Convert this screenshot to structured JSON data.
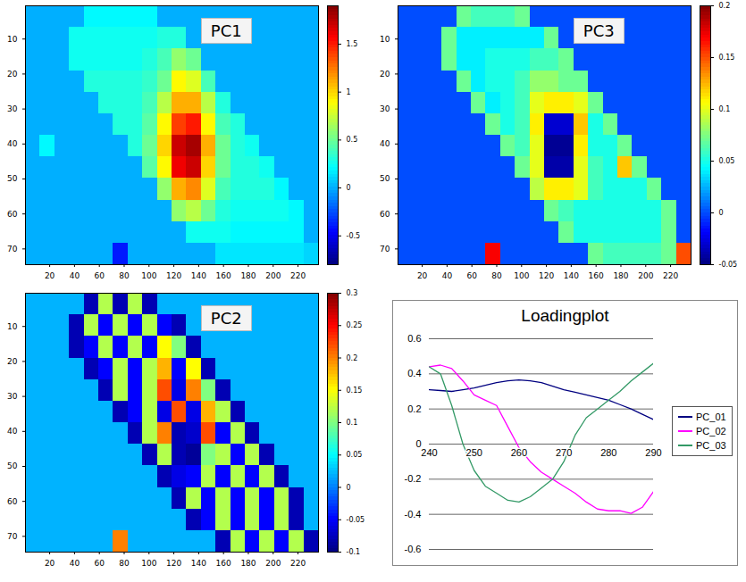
{
  "chart_data": [
    {
      "type": "heatmap",
      "title": "PC1",
      "xlim": [
        0.5,
        236.5
      ],
      "ylim": [
        0.5,
        74.5
      ],
      "xticks": [
        20,
        40,
        60,
        80,
        100,
        120,
        140,
        160,
        180,
        200,
        220
      ],
      "yticks": [
        10,
        20,
        30,
        40,
        50,
        60,
        70
      ],
      "color_range": [
        -0.8,
        1.9
      ],
      "color_ticks": [
        -0.5,
        0,
        0.5,
        1,
        1.5
      ],
      "cells": [
        [
          0,
          0,
          0,
          0,
          0.2,
          0.2,
          0.2,
          0.2,
          0.2,
          0,
          0,
          0,
          0,
          0,
          0,
          0,
          0,
          0,
          0,
          0
        ],
        [
          0,
          0,
          0,
          0.25,
          0.25,
          0.25,
          0.25,
          0.25,
          0.25,
          0.3,
          0.3,
          0,
          0,
          0,
          0,
          0,
          0,
          0,
          0,
          0
        ],
        [
          0,
          0,
          0,
          0.25,
          0.25,
          0.25,
          0.25,
          0.25,
          0.3,
          0.4,
          0.6,
          0.5,
          0,
          0,
          0,
          0,
          0,
          0,
          0,
          0
        ],
        [
          0,
          0,
          0,
          0,
          0.3,
          0.3,
          0.3,
          0.3,
          0.35,
          0.5,
          0.9,
          0.8,
          0.4,
          0,
          0,
          0,
          0,
          0,
          0,
          0
        ],
        [
          0,
          0,
          0,
          0,
          0,
          0.3,
          0.3,
          0.3,
          0.4,
          0.7,
          1.1,
          1.1,
          0.7,
          0.3,
          0,
          0,
          0,
          0,
          0,
          0
        ],
        [
          0,
          0,
          0,
          0,
          0,
          0,
          0.3,
          0.3,
          0.45,
          0.9,
          1.4,
          1.5,
          0.9,
          0.4,
          0.3,
          0,
          0,
          0,
          0,
          0
        ],
        [
          0,
          0.2,
          0,
          0,
          0,
          0,
          0,
          0.3,
          0.5,
          1.0,
          1.7,
          1.8,
          1.1,
          0.5,
          0.3,
          0.25,
          0,
          0,
          0,
          0
        ],
        [
          0,
          0,
          0,
          0,
          0,
          0,
          0,
          0,
          0.45,
          0.9,
          1.6,
          1.7,
          1.0,
          0.5,
          0.3,
          0.3,
          0.25,
          0,
          0,
          0
        ],
        [
          0,
          0,
          0,
          0,
          0,
          0,
          0,
          0,
          0,
          0.6,
          1.1,
          1.2,
          0.8,
          0.4,
          0.3,
          0.3,
          0.3,
          0.2,
          0,
          0
        ],
        [
          0,
          0,
          0,
          0,
          0,
          0,
          0,
          0,
          0,
          0,
          0.6,
          0.7,
          0.5,
          0.3,
          0.25,
          0.25,
          0.25,
          0.25,
          0.2,
          0
        ],
        [
          0,
          0,
          0,
          0,
          0,
          0,
          0,
          0,
          0,
          0,
          0,
          0.25,
          0.25,
          0.25,
          0.2,
          0.2,
          0.2,
          0.2,
          0.2,
          0
        ],
        [
          0,
          0,
          0,
          0,
          0,
          0,
          -0.4,
          0,
          0,
          0,
          0,
          0,
          0,
          0.15,
          0.15,
          0.15,
          0.15,
          0.15,
          0.15,
          0.1
        ]
      ]
    },
    {
      "type": "heatmap",
      "title": "PC3",
      "xlim": [
        0.5,
        236.5
      ],
      "ylim": [
        0.5,
        74.5
      ],
      "xticks": [
        20,
        40,
        60,
        80,
        100,
        120,
        140,
        160,
        180,
        200,
        220
      ],
      "yticks": [
        10,
        20,
        30,
        40,
        50,
        60,
        70
      ],
      "color_range": [
        -0.05,
        0.2
      ],
      "color_ticks": [
        -0.05,
        0,
        0.05,
        0.1,
        0.15,
        0.2
      ],
      "cells": [
        [
          0,
          0,
          0,
          0,
          0.07,
          0.06,
          0.06,
          0.06,
          0.07,
          0,
          0,
          0,
          0,
          0,
          0,
          0,
          0,
          0,
          0,
          0
        ],
        [
          0,
          0,
          0,
          0.07,
          0.04,
          0.04,
          0.04,
          0.04,
          0.04,
          0.04,
          0.07,
          0,
          0,
          0,
          0,
          0,
          0,
          0,
          0,
          0
        ],
        [
          0,
          0,
          0,
          0.07,
          0.04,
          0.04,
          0.05,
          0.05,
          0.05,
          0.06,
          0.06,
          0.07,
          0,
          0,
          0,
          0,
          0,
          0,
          0,
          0
        ],
        [
          0,
          0,
          0,
          0,
          0.07,
          0.04,
          0.05,
          0.05,
          0.06,
          0.08,
          0.08,
          0.07,
          0.07,
          0,
          0,
          0,
          0,
          0,
          0,
          0
        ],
        [
          0,
          0,
          0,
          0,
          0,
          0.07,
          0.04,
          0.05,
          0.06,
          0.1,
          0.11,
          0.11,
          0.1,
          0.07,
          0,
          0,
          0,
          0,
          0,
          0
        ],
        [
          0,
          0,
          0,
          0,
          0,
          0,
          0.07,
          0.05,
          0.06,
          0.11,
          -0.03,
          -0.03,
          0.12,
          0.05,
          0.07,
          0,
          0,
          0,
          0,
          0
        ],
        [
          0,
          0,
          0,
          0,
          0,
          0,
          0,
          0.07,
          0.06,
          0.1,
          -0.045,
          -0.045,
          0.11,
          0.05,
          0.05,
          0.07,
          0,
          0,
          0,
          0
        ],
        [
          0,
          0,
          0,
          0,
          0,
          0,
          0,
          0,
          0.07,
          0.1,
          -0.04,
          -0.04,
          0.1,
          0.06,
          0.05,
          0.12,
          0.07,
          0,
          0,
          0
        ],
        [
          0,
          0,
          0,
          0,
          0,
          0,
          0,
          0,
          0,
          0.09,
          0.11,
          0.11,
          0.1,
          0.06,
          0.05,
          0.05,
          0.05,
          0.07,
          0,
          0
        ],
        [
          0,
          0,
          0,
          0,
          0,
          0,
          0,
          0,
          0,
          0,
          0.07,
          0.06,
          0.05,
          0.05,
          0.05,
          0.05,
          0.05,
          0.05,
          0.07,
          0
        ],
        [
          0,
          0,
          0,
          0,
          0,
          0,
          0,
          0,
          0,
          0,
          0,
          0.07,
          0.05,
          0.05,
          0.05,
          0.05,
          0.05,
          0.05,
          0.07,
          0
        ],
        [
          0,
          0,
          0,
          0,
          0,
          0,
          0.17,
          0,
          0,
          0,
          0,
          0,
          0,
          0.07,
          0.06,
          0.06,
          0.06,
          0.06,
          0.07,
          0.15
        ]
      ]
    },
    {
      "type": "heatmap",
      "title": "PC2",
      "xlim": [
        0.5,
        236.5
      ],
      "ylim": [
        0.5,
        74.5
      ],
      "xticks": [
        20,
        40,
        60,
        80,
        100,
        120,
        140,
        160,
        180,
        200,
        220
      ],
      "yticks": [
        10,
        20,
        30,
        40,
        50,
        60,
        70
      ],
      "color_range": [
        -0.1,
        0.3
      ],
      "color_ticks": [
        -0.1,
        -0.05,
        0,
        0.05,
        0.1,
        0.15,
        0.2,
        0.25,
        0.3
      ],
      "cells": [
        [
          0.02,
          0.02,
          0.02,
          0.02,
          -0.08,
          0.12,
          -0.08,
          0.12,
          -0.08,
          0.02,
          0.02,
          0.02,
          0.02,
          0.02,
          0.02,
          0.02,
          0.02,
          0.02,
          0.02,
          0.02
        ],
        [
          0.02,
          0.02,
          0.02,
          -0.08,
          0.12,
          -0.05,
          0.12,
          -0.05,
          0.12,
          -0.05,
          -0.08,
          0.02,
          0.02,
          0.02,
          0.02,
          0.02,
          0.02,
          0.02,
          0.02,
          0.02
        ],
        [
          0.02,
          0.02,
          0.02,
          -0.08,
          -0.05,
          0.12,
          -0.05,
          0.12,
          -0.05,
          0.15,
          0.1,
          -0.08,
          0.02,
          0.02,
          0.02,
          0.02,
          0.02,
          0.02,
          0.02,
          0.02
        ],
        [
          0.02,
          0.02,
          0.02,
          0.02,
          -0.08,
          -0.05,
          0.12,
          -0.05,
          0.12,
          0.18,
          -0.05,
          0.15,
          -0.08,
          0.02,
          0.02,
          0.02,
          0.02,
          0.02,
          0.02,
          0.02
        ],
        [
          0.02,
          0.02,
          0.02,
          0.02,
          0.02,
          -0.08,
          0.12,
          -0.05,
          0.12,
          0.22,
          -0.06,
          0.2,
          0.1,
          -0.08,
          0.02,
          0.02,
          0.02,
          0.02,
          0.02,
          0.02
        ],
        [
          0.02,
          0.02,
          0.02,
          0.02,
          0.02,
          0.02,
          -0.08,
          -0.05,
          0.12,
          -0.06,
          0.22,
          -0.06,
          0.18,
          0.12,
          -0.08,
          0.02,
          0.02,
          0.02,
          0.02,
          0.02
        ],
        [
          0.02,
          0.02,
          0.02,
          0.02,
          0.02,
          0.02,
          0.02,
          -0.08,
          0.12,
          0.2,
          -0.08,
          -0.07,
          0.22,
          -0.05,
          0.12,
          -0.08,
          0.02,
          0.02,
          0.02,
          0.02
        ],
        [
          0.02,
          0.02,
          0.02,
          0.02,
          0.02,
          0.02,
          0.02,
          0.02,
          -0.08,
          0.12,
          -0.08,
          -0.09,
          0.1,
          0.12,
          -0.05,
          0.12,
          -0.08,
          0.02,
          0.02,
          0.02
        ],
        [
          0.02,
          0.02,
          0.02,
          0.02,
          0.02,
          0.02,
          0.02,
          0.02,
          0.02,
          -0.08,
          -0.06,
          -0.05,
          0.12,
          -0.05,
          0.12,
          -0.05,
          0.12,
          -0.08,
          0.02,
          0.02
        ],
        [
          0.02,
          0.02,
          0.02,
          0.02,
          0.02,
          0.02,
          0.02,
          0.02,
          0.02,
          0.02,
          -0.08,
          0.12,
          -0.05,
          0.12,
          -0.05,
          0.12,
          -0.05,
          0.12,
          -0.08,
          0.02
        ],
        [
          0.02,
          0.02,
          0.02,
          0.02,
          0.02,
          0.02,
          0.02,
          0.02,
          0.02,
          0.02,
          0.02,
          -0.08,
          -0.05,
          0.12,
          -0.05,
          0.12,
          -0.05,
          0.12,
          -0.08,
          0.02
        ],
        [
          0.02,
          0.02,
          0.02,
          0.02,
          0.02,
          0.02,
          0.2,
          0.02,
          0.02,
          0.02,
          0.02,
          0.02,
          0.02,
          -0.08,
          0.12,
          -0.05,
          0.12,
          -0.05,
          0.12,
          -0.08
        ]
      ]
    },
    {
      "type": "line",
      "title": "Loadingplot",
      "x": [
        240,
        242.5,
        245,
        247.5,
        250,
        252.5,
        255,
        257.5,
        260,
        262.5,
        265,
        267.5,
        270,
        272.5,
        275,
        277.5,
        280,
        282.5,
        285,
        287.5,
        290
      ],
      "series": [
        {
          "name": "PC_01",
          "color": "#000080",
          "values": [
            0.31,
            0.305,
            0.3,
            0.31,
            0.32,
            0.335,
            0.35,
            0.36,
            0.365,
            0.36,
            0.35,
            0.33,
            0.31,
            0.295,
            0.28,
            0.265,
            0.25,
            0.225,
            0.2,
            0.17,
            0.14
          ]
        },
        {
          "name": "PC_02",
          "color": "#ff00ff",
          "values": [
            0.44,
            0.45,
            0.43,
            0.36,
            0.28,
            0.25,
            0.22,
            0.1,
            -0.02,
            -0.1,
            -0.16,
            -0.2,
            -0.24,
            -0.28,
            -0.33,
            -0.37,
            -0.38,
            -0.38,
            -0.395,
            -0.36,
            -0.27
          ]
        },
        {
          "name": "PC_03",
          "color": "#339966",
          "values": [
            0.44,
            0.4,
            0.22,
            0.0,
            -0.15,
            -0.24,
            -0.28,
            -0.32,
            -0.33,
            -0.3,
            -0.25,
            -0.2,
            -0.1,
            0.05,
            0.15,
            0.2,
            0.25,
            0.3,
            0.36,
            0.41,
            0.46
          ]
        }
      ],
      "xlim": [
        240,
        290
      ],
      "ylim": [
        -0.6,
        0.6
      ],
      "xticks": [
        240,
        250,
        260,
        270,
        280,
        290
      ],
      "yticks": [
        -0.6,
        -0.4,
        -0.2,
        0,
        0.2,
        0.4,
        0.6
      ],
      "grid": true,
      "legend": "right"
    }
  ]
}
